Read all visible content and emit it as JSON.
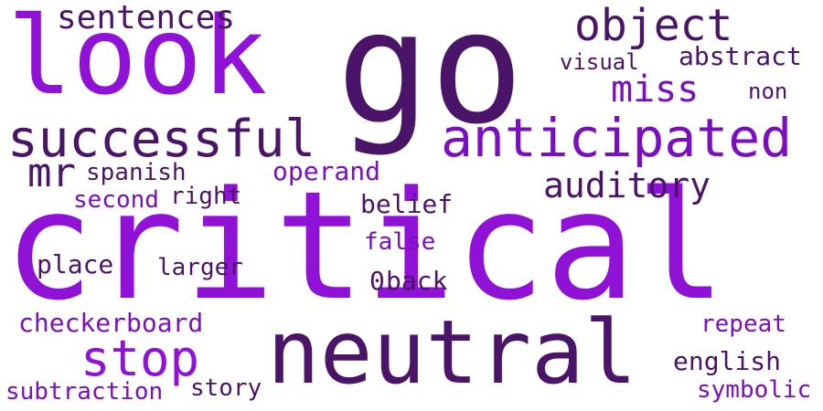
{
  "colors": {
    "dark": "#4a1568",
    "mid": "#7a0fbf",
    "bright": "#8f12d6",
    "background": "#ffffff"
  },
  "words": {
    "go": "go",
    "look": "look",
    "critical": "critical",
    "neutral": "neutral",
    "successful": "successful",
    "anticipated": "anticipated",
    "sentences": "sentences",
    "object": "object",
    "miss": "miss",
    "visual": "visual",
    "abstract": "abstract",
    "non": "non",
    "mr": "mr",
    "spanish": "spanish",
    "operand": "operand",
    "auditory": "auditory",
    "second": "second",
    "right": "right",
    "belief": "belief",
    "false": "false",
    "place": "place",
    "larger": "larger",
    "back": "back",
    "checkerboard": "checkerboard",
    "stop": "stop",
    "repeat": "repeat",
    "english": "english",
    "subtraction": "subtraction",
    "story": "story",
    "symbolic": "symbolic",
    "zero": "0"
  }
}
